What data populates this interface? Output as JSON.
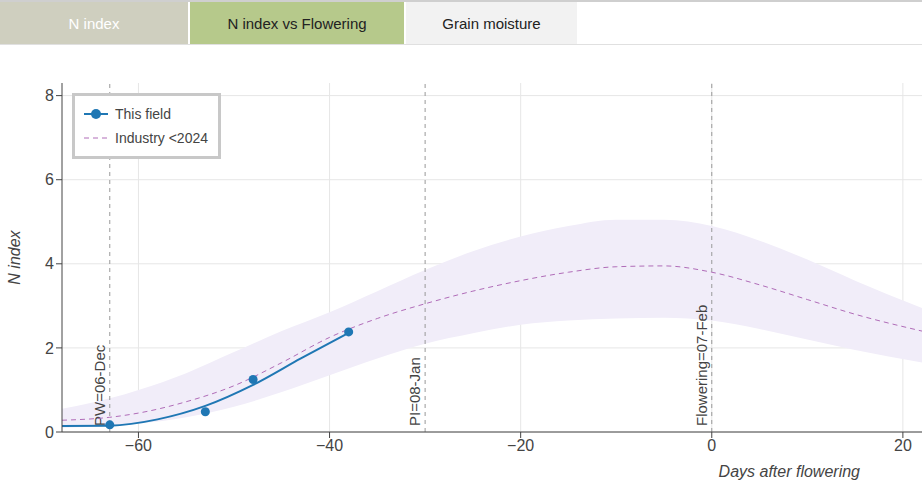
{
  "tabs": [
    {
      "label": "N index",
      "color": "#cfcfbf"
    },
    {
      "label": "N index vs Flowering",
      "color": "#b6c98b"
    },
    {
      "label": "Grain moisture",
      "color": "#f2f2f2"
    }
  ],
  "chart_data": {
    "type": "line",
    "x_label": "Days after flowering",
    "y_label": "N index",
    "xlim": [
      -68,
      22
    ],
    "xticks": [
      {
        "value": -60,
        "label": "−60"
      },
      {
        "value": -40,
        "label": "−40"
      },
      {
        "value": -20,
        "label": "−20"
      },
      0,
      20
    ],
    "ylim": [
      0,
      8.3
    ],
    "yticks": [
      0,
      2,
      4,
      6,
      8
    ],
    "grid": true,
    "legend": "top left",
    "annotations": [
      {
        "x": -63,
        "label": "PW=06-Dec"
      },
      {
        "x": -30,
        "label": "PI=08-Jan"
      },
      {
        "x": 0,
        "label": "Flowering=07-Feb"
      }
    ],
    "series": [
      {
        "name": "This field",
        "color": "#1f77b4",
        "line_style": "solid",
        "marker": "circle",
        "x": [
          -68,
          -63,
          -58,
          -53,
          -48,
          -43,
          -38
        ],
        "values": [
          0.14,
          0.15,
          0.3,
          0.62,
          1.12,
          1.75,
          2.36
        ],
        "observations": {
          "x": [
            -63,
            -53,
            -48,
            -38
          ],
          "values": [
            0.17,
            0.48,
            1.25,
            2.38
          ]
        }
      },
      {
        "name": "Industry <2024",
        "color": "#b06cb8",
        "line_style": "dashed",
        "marker": "none",
        "x": [
          -68,
          -63,
          -60,
          -55,
          -50,
          -45,
          -40,
          -35,
          -30,
          -25,
          -20,
          -15,
          -10,
          -5,
          0,
          5,
          10,
          15,
          22
        ],
        "values": [
          0.28,
          0.35,
          0.45,
          0.72,
          1.1,
          1.65,
          2.25,
          2.7,
          3.05,
          3.35,
          3.6,
          3.8,
          3.93,
          3.95,
          3.8,
          3.5,
          3.15,
          2.8,
          2.4
        ],
        "band": {
          "color": "#f1edf9",
          "lower": [
            0.1,
            0.15,
            0.2,
            0.35,
            0.6,
            0.95,
            1.35,
            1.75,
            2.1,
            2.35,
            2.55,
            2.65,
            2.7,
            2.72,
            2.65,
            2.45,
            2.2,
            1.95,
            1.65
          ],
          "upper": [
            0.55,
            0.8,
            1.0,
            1.4,
            1.9,
            2.4,
            2.85,
            3.35,
            3.85,
            4.3,
            4.65,
            4.9,
            5.05,
            5.05,
            4.9,
            4.55,
            4.1,
            3.6,
            2.95
          ]
        }
      }
    ]
  }
}
